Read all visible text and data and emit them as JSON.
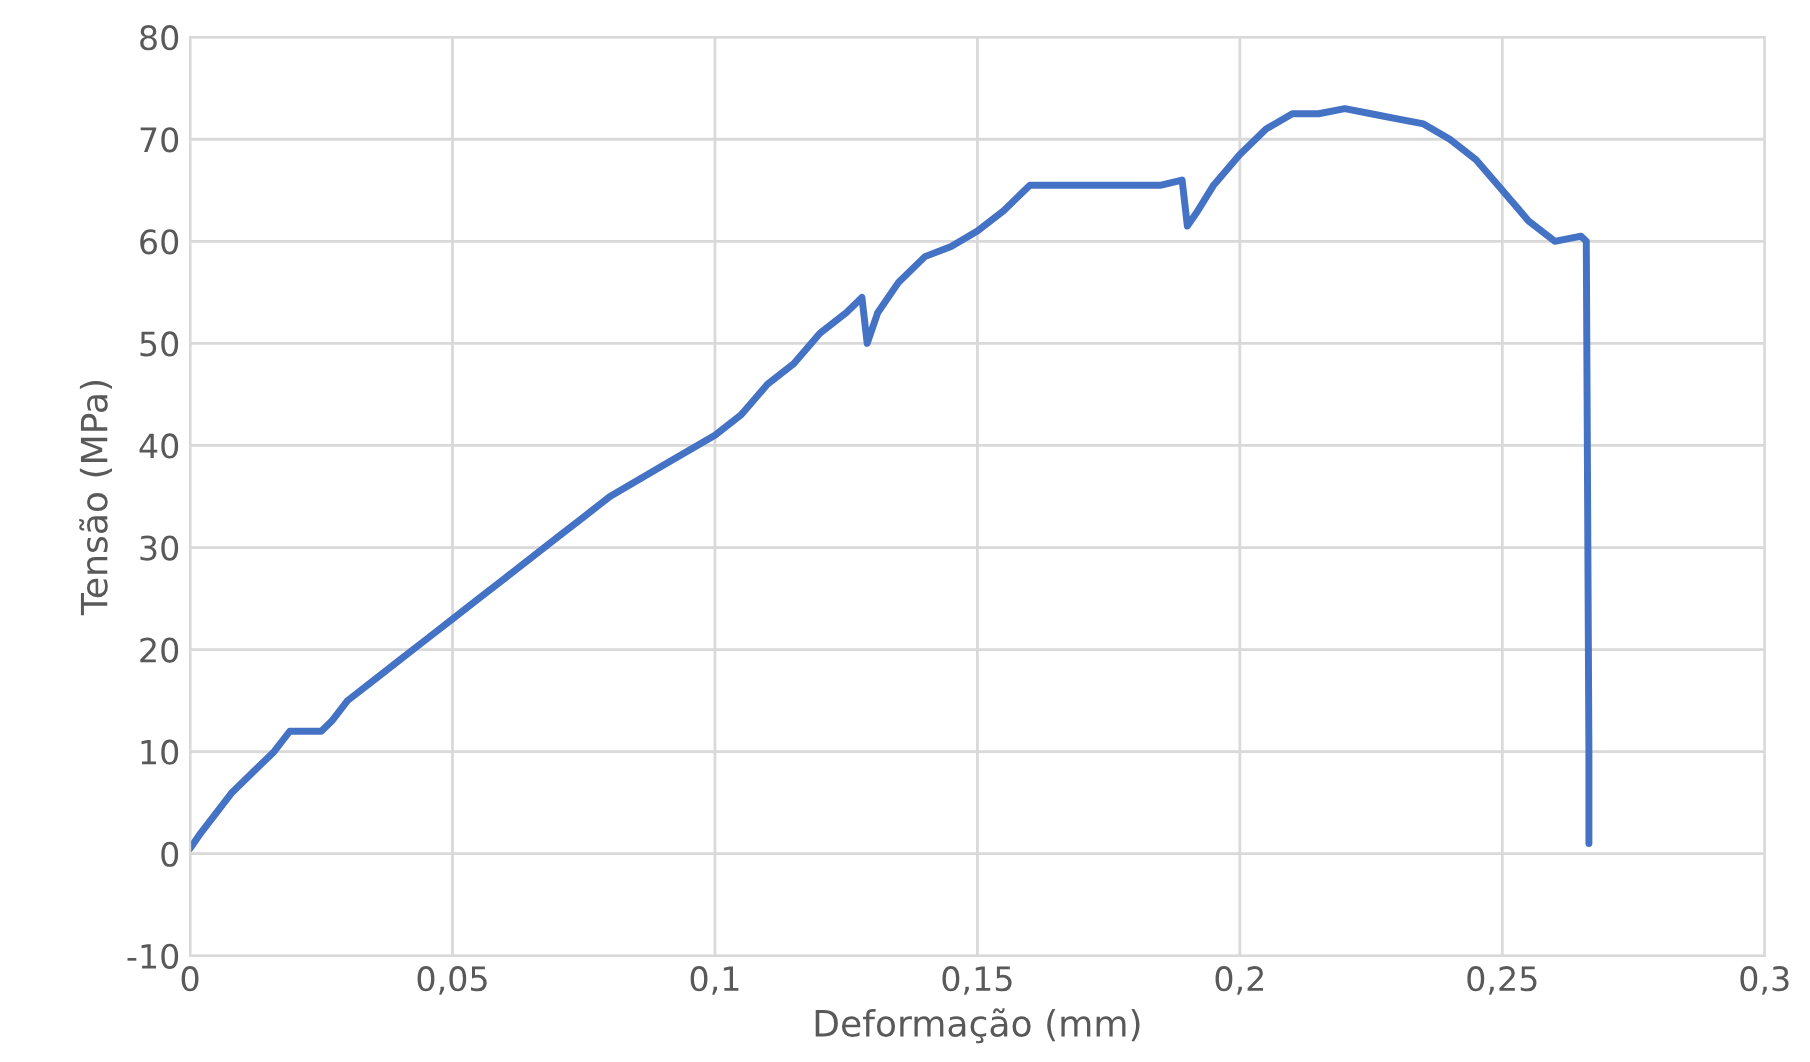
{
  "chart_data": {
    "type": "line",
    "xlabel": "Deformação (mm)",
    "ylabel": "Tensão (MPa)",
    "series": [
      {
        "color": "#4472c4",
        "x": [
          0,
          0.002,
          0.005,
          0.008,
          0.012,
          0.016,
          0.019,
          0.025,
          0.027,
          0.03,
          0.035,
          0.04,
          0.045,
          0.05,
          0.055,
          0.06,
          0.065,
          0.07,
          0.075,
          0.08,
          0.09,
          0.1,
          0.105,
          0.11,
          0.115,
          0.12,
          0.125,
          0.128,
          0.129,
          0.131,
          0.135,
          0.14,
          0.145,
          0.15,
          0.155,
          0.16,
          0.165,
          0.17,
          0.18,
          0.185,
          0.189,
          0.19,
          0.192,
          0.195,
          0.2,
          0.205,
          0.21,
          0.215,
          0.22,
          0.225,
          0.23,
          0.235,
          0.24,
          0.245,
          0.25,
          0.255,
          0.26,
          0.265,
          0.266,
          0.2665,
          0.2665
        ],
        "values": [
          0.5,
          2,
          4,
          6,
          8,
          10,
          12,
          12,
          13,
          15,
          17,
          19,
          21,
          23,
          25,
          27,
          29,
          31,
          33,
          35,
          38,
          41,
          43,
          46,
          48,
          51,
          53,
          54.5,
          50,
          53,
          56,
          58.5,
          59.5,
          61,
          63,
          65.5,
          65.5,
          65.5,
          65.5,
          65.5,
          66,
          61.5,
          63,
          65.5,
          68.5,
          71,
          72.5,
          72.5,
          73,
          72.5,
          72,
          71.5,
          70,
          68,
          65,
          62,
          60,
          60.5,
          60,
          10,
          1
        ]
      }
    ],
    "xlim": [
      0,
      0.3
    ],
    "xticks": [
      {
        "value": 0,
        "label": "0"
      },
      {
        "value": 0.05,
        "label": "0,05"
      },
      {
        "value": 0.1,
        "label": "0,1"
      },
      {
        "value": 0.15,
        "label": "0,15"
      },
      {
        "value": 0.2,
        "label": "0,2"
      },
      {
        "value": 0.25,
        "label": "0,25"
      },
      {
        "value": 0.3,
        "label": "0,3"
      }
    ],
    "ylim": [
      -10,
      80
    ],
    "yticks": [
      -10,
      0,
      10,
      20,
      30,
      40,
      50,
      60,
      70,
      80
    ],
    "grid": true,
    "marker": "none",
    "line_style": "solid"
  }
}
